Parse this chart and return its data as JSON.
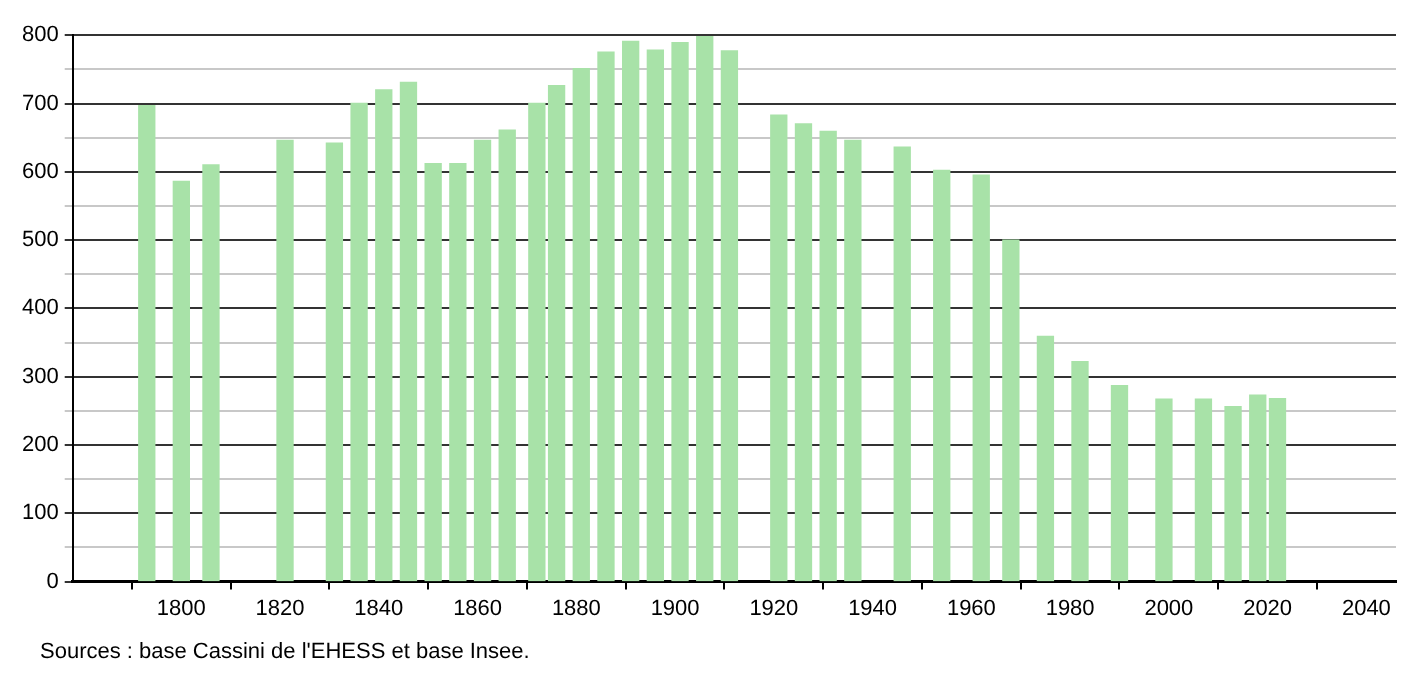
{
  "chart_data": {
    "type": "bar",
    "x": [
      1793,
      1800,
      1806,
      1821,
      1831,
      1836,
      1841,
      1846,
      1851,
      1856,
      1861,
      1866,
      1872,
      1876,
      1881,
      1886,
      1891,
      1896,
      1901,
      1906,
      1911,
      1921,
      1926,
      1931,
      1936,
      1946,
      1954,
      1962,
      1968,
      1975,
      1982,
      1990,
      1999,
      2007,
      2013,
      2018,
      2022
    ],
    "values": [
      697,
      586,
      610,
      646,
      642,
      700,
      720,
      731,
      612,
      612,
      646,
      661,
      700,
      726,
      751,
      775,
      791,
      778,
      789,
      798,
      777,
      683,
      670,
      659,
      646,
      636,
      602,
      595,
      500,
      359,
      322,
      287,
      267,
      267,
      256,
      273,
      268
    ],
    "color": "#a8e2a8",
    "xlim": [
      1778,
      2046
    ],
    "xticks": [
      1800,
      1820,
      1840,
      1860,
      1880,
      1900,
      1920,
      1940,
      1960,
      1980,
      2000,
      2020,
      2040
    ],
    "ylim": [
      0,
      800
    ],
    "yticks": [
      0,
      {
        "value": 50,
        "label": null
      },
      100,
      {
        "value": 150,
        "label": null
      },
      200,
      {
        "value": 250,
        "label": null
      },
      300,
      {
        "value": 350,
        "label": null
      },
      400,
      {
        "value": 450,
        "label": null
      },
      500,
      {
        "value": 550,
        "label": null
      },
      600,
      {
        "value": 650,
        "label": null
      },
      700,
      {
        "value": 750,
        "label": null
      },
      800
    ],
    "grid": "y",
    "annotations": [
      "Sources : base Cassini de l'EHESS et base Insee."
    ]
  }
}
